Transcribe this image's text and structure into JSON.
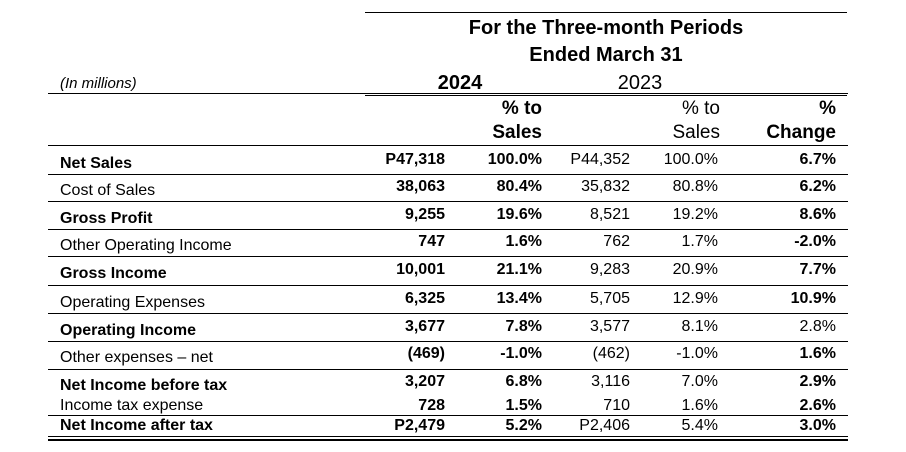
{
  "header": {
    "title_line1": "For the Three-month Periods",
    "title_line2": "Ended March 31",
    "units": "(In millions)",
    "year_current": "2024",
    "year_prior": "2023",
    "col_pct_current_line1": "% to",
    "col_pct_current_line2": "Sales",
    "col_pct_prior_line1": "% to",
    "col_pct_prior_line2": "Sales",
    "col_change_line1": "%",
    "col_change_line2": "Change"
  },
  "rows": [
    {
      "label": "Net Sales",
      "v2024": "P47,318",
      "p2024": "100.0%",
      "v2023": "P44,352",
      "p2023": "100.0%",
      "change": "6.7%"
    },
    {
      "label": "Cost of Sales",
      "v2024": "38,063",
      "p2024": "80.4%",
      "v2023": "35,832",
      "p2023": "80.8%",
      "change": "6.2%"
    },
    {
      "label": "Gross Profit",
      "v2024": "9,255",
      "p2024": "19.6%",
      "v2023": "8,521",
      "p2023": "19.2%",
      "change": "8.6%"
    },
    {
      "label": "Other Operating Income",
      "v2024": "747",
      "p2024": "1.6%",
      "v2023": "762",
      "p2023": "1.7%",
      "change": "-2.0%"
    },
    {
      "label": "Gross Income",
      "v2024": "10,001",
      "p2024": "21.1%",
      "v2023": "9,283",
      "p2023": "20.9%",
      "change": "7.7%"
    },
    {
      "label": "Operating Expenses",
      "v2024": "6,325",
      "p2024": "13.4%",
      "v2023": "5,705",
      "p2023": "12.9%",
      "change": "10.9%"
    },
    {
      "label": "Operating Income",
      "v2024": "3,677",
      "p2024": "7.8%",
      "v2023": "3,577",
      "p2023": "8.1%",
      "change": "2.8%"
    },
    {
      "label": "Other expenses – net",
      "v2024": "(469)",
      "p2024": "-1.0%",
      "v2023": "(462)",
      "p2023": "-1.0%",
      "change": "1.6%"
    },
    {
      "label": "Net Income before tax",
      "v2024": "3,207",
      "p2024": "6.8%",
      "v2023": "3,116",
      "p2023": "7.0%",
      "change": "2.9%"
    },
    {
      "label": "Income tax expense",
      "v2024": "728",
      "p2024": "1.5%",
      "v2023": "710",
      "p2023": "1.6%",
      "change": "2.6%"
    },
    {
      "label": "Net Income after tax",
      "v2024": "P2,479",
      "p2024": "5.2%",
      "v2023": "P2,406",
      "p2023": "5.4%",
      "change": "3.0%"
    }
  ]
}
